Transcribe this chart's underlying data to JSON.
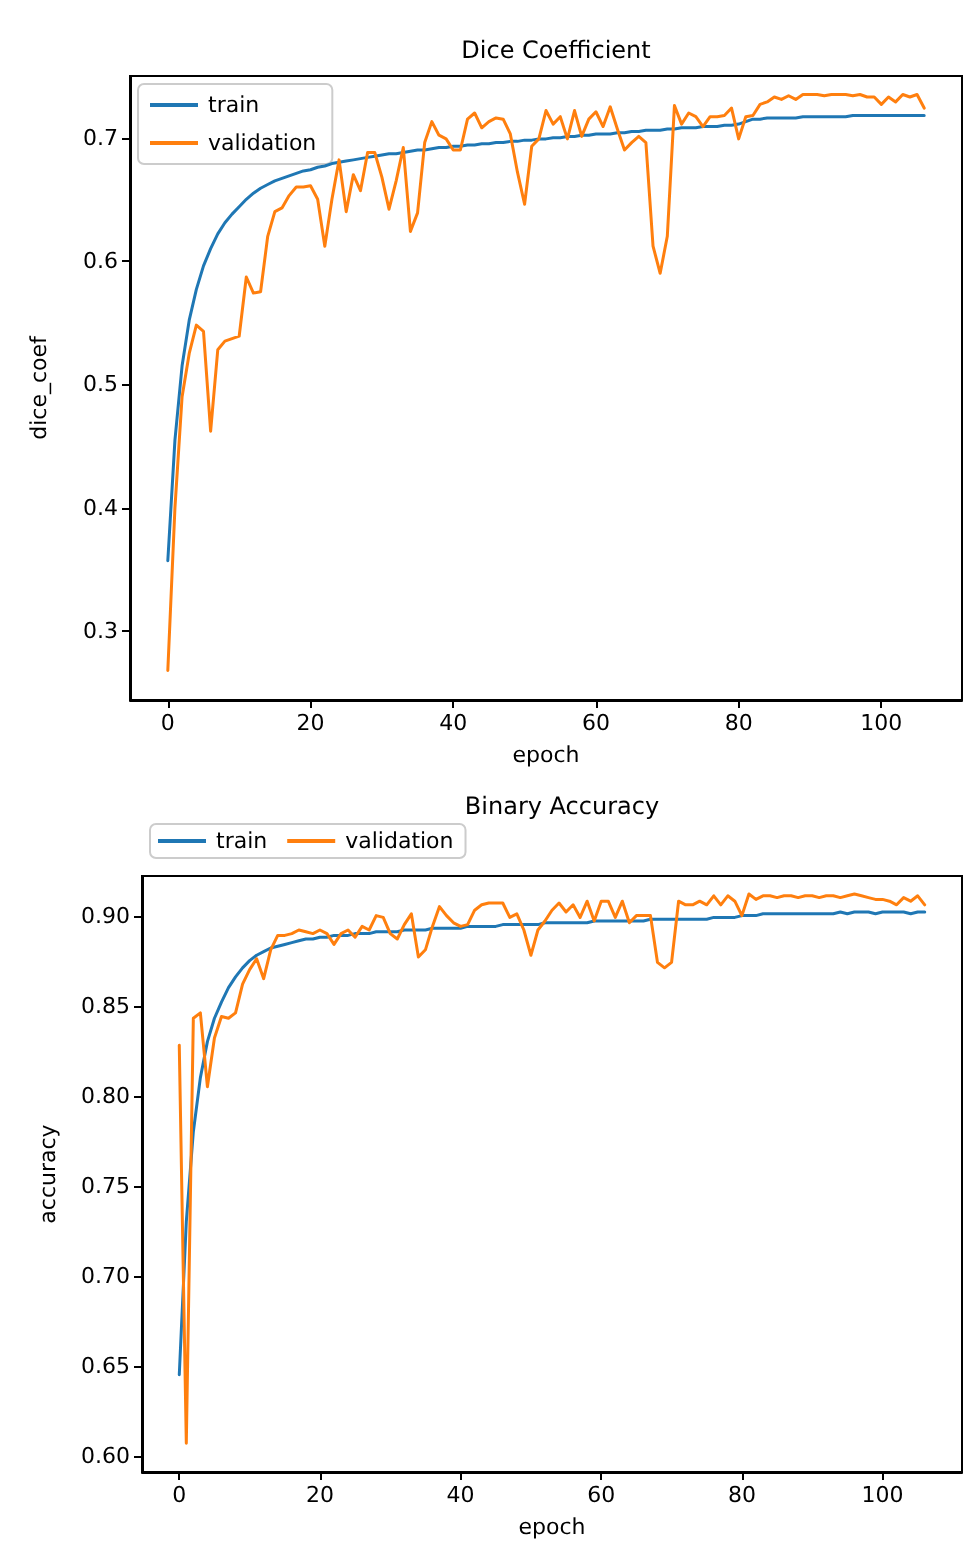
{
  "chart_data": [
    {
      "type": "line",
      "title": "Dice Coefficient",
      "xlabel": "epoch",
      "ylabel": "dice_coef",
      "x": [
        0,
        1,
        2,
        3,
        4,
        5,
        6,
        7,
        8,
        9,
        10,
        11,
        12,
        13,
        14,
        15,
        16,
        17,
        18,
        19,
        20,
        21,
        22,
        23,
        24,
        25,
        26,
        27,
        28,
        29,
        30,
        31,
        32,
        33,
        34,
        35,
        36,
        37,
        38,
        39,
        40,
        41,
        42,
        43,
        44,
        45,
        46,
        47,
        48,
        49,
        50,
        51,
        52,
        53,
        54,
        55,
        56,
        57,
        58,
        59,
        60,
        61,
        62,
        63,
        64,
        65,
        66,
        67,
        68,
        69,
        70,
        71,
        72,
        73,
        74,
        75,
        76,
        77,
        78,
        79,
        80,
        81,
        82,
        83,
        84,
        85,
        86,
        87,
        88,
        89,
        90,
        91,
        92,
        93,
        94,
        95,
        96,
        97,
        98,
        99,
        100,
        101,
        102,
        103,
        104,
        105,
        106
      ],
      "series": [
        {
          "name": "train",
          "color": "#1f77b4",
          "values": [
            0.357,
            0.455,
            0.515,
            0.552,
            0.577,
            0.596,
            0.61,
            0.622,
            0.631,
            0.638,
            0.644,
            0.65,
            0.655,
            0.659,
            0.662,
            0.665,
            0.667,
            0.669,
            0.671,
            0.673,
            0.674,
            0.676,
            0.677,
            0.679,
            0.68,
            0.681,
            0.682,
            0.683,
            0.684,
            0.685,
            0.686,
            0.687,
            0.687,
            0.688,
            0.689,
            0.69,
            0.69,
            0.691,
            0.692,
            0.692,
            0.693,
            0.693,
            0.694,
            0.694,
            0.695,
            0.695,
            0.696,
            0.696,
            0.697,
            0.697,
            0.698,
            0.698,
            0.699,
            0.699,
            0.7,
            0.7,
            0.701,
            0.701,
            0.702,
            0.702,
            0.703,
            0.703,
            0.703,
            0.704,
            0.704,
            0.705,
            0.705,
            0.706,
            0.706,
            0.706,
            0.707,
            0.707,
            0.708,
            0.708,
            0.708,
            0.709,
            0.709,
            0.709,
            0.71,
            0.71,
            0.711,
            0.713,
            0.715,
            0.715,
            0.716,
            0.716,
            0.716,
            0.716,
            0.716,
            0.717,
            0.717,
            0.717,
            0.717,
            0.717,
            0.717,
            0.717,
            0.718,
            0.718,
            0.718,
            0.718,
            0.718,
            0.718,
            0.718,
            0.718,
            0.718,
            0.718,
            0.718
          ]
        },
        {
          "name": "validation",
          "color": "#ff7f0e",
          "values": [
            0.268,
            0.4,
            0.49,
            0.525,
            0.548,
            0.543,
            0.462,
            0.528,
            0.535,
            0.537,
            0.539,
            0.587,
            0.574,
            0.575,
            0.62,
            0.64,
            0.643,
            0.653,
            0.66,
            0.66,
            0.661,
            0.65,
            0.612,
            0.65,
            0.682,
            0.64,
            0.67,
            0.657,
            0.688,
            0.688,
            0.668,
            0.642,
            0.665,
            0.692,
            0.624,
            0.639,
            0.696,
            0.713,
            0.702,
            0.699,
            0.69,
            0.69,
            0.715,
            0.72,
            0.708,
            0.713,
            0.716,
            0.715,
            0.703,
            0.672,
            0.646,
            0.693,
            0.699,
            0.722,
            0.711,
            0.717,
            0.699,
            0.722,
            0.701,
            0.715,
            0.721,
            0.709,
            0.725,
            0.707,
            0.69,
            0.696,
            0.701,
            0.696,
            0.612,
            0.59,
            0.62,
            0.726,
            0.711,
            0.72,
            0.717,
            0.709,
            0.717,
            0.717,
            0.718,
            0.724,
            0.699,
            0.717,
            0.718,
            0.727,
            0.729,
            0.733,
            0.731,
            0.734,
            0.731,
            0.735,
            0.735,
            0.735,
            0.734,
            0.735,
            0.735,
            0.735,
            0.734,
            0.735,
            0.733,
            0.733,
            0.727,
            0.733,
            0.729,
            0.735,
            0.733,
            0.735,
            0.724
          ]
        }
      ],
      "xlim": [
        -5.3,
        111.3
      ],
      "xticks": [
        0,
        20,
        40,
        60,
        80,
        100
      ],
      "ylim": [
        0.244,
        0.75
      ],
      "yticks": [
        0.3,
        0.4,
        0.5,
        0.6,
        0.7
      ],
      "grid": false,
      "legend": "top left"
    },
    {
      "type": "line",
      "title": "Binary Accuracy",
      "xlabel": "epoch",
      "ylabel": "accuracy",
      "x": [
        0,
        1,
        2,
        3,
        4,
        5,
        6,
        7,
        8,
        9,
        10,
        11,
        12,
        13,
        14,
        15,
        16,
        17,
        18,
        19,
        20,
        21,
        22,
        23,
        24,
        25,
        26,
        27,
        28,
        29,
        30,
        31,
        32,
        33,
        34,
        35,
        36,
        37,
        38,
        39,
        40,
        41,
        42,
        43,
        44,
        45,
        46,
        47,
        48,
        49,
        50,
        51,
        52,
        53,
        54,
        55,
        56,
        57,
        58,
        59,
        60,
        61,
        62,
        63,
        64,
        65,
        66,
        67,
        68,
        69,
        70,
        71,
        72,
        73,
        74,
        75,
        76,
        77,
        78,
        79,
        80,
        81,
        82,
        83,
        84,
        85,
        86,
        87,
        88,
        89,
        90,
        91,
        92,
        93,
        94,
        95,
        96,
        97,
        98,
        99,
        100,
        101,
        102,
        103,
        104,
        105,
        106
      ],
      "series": [
        {
          "name": "train",
          "color": "#1f77b4",
          "values": [
            0.645,
            0.73,
            0.78,
            0.81,
            0.83,
            0.843,
            0.852,
            0.86,
            0.866,
            0.871,
            0.875,
            0.878,
            0.88,
            0.882,
            0.883,
            0.884,
            0.885,
            0.886,
            0.887,
            0.887,
            0.888,
            0.888,
            0.889,
            0.889,
            0.889,
            0.89,
            0.89,
            0.89,
            0.891,
            0.891,
            0.891,
            0.891,
            0.892,
            0.892,
            0.892,
            0.892,
            0.893,
            0.893,
            0.893,
            0.893,
            0.893,
            0.894,
            0.894,
            0.894,
            0.894,
            0.894,
            0.895,
            0.895,
            0.895,
            0.895,
            0.895,
            0.895,
            0.896,
            0.896,
            0.896,
            0.896,
            0.896,
            0.896,
            0.896,
            0.897,
            0.897,
            0.897,
            0.897,
            0.897,
            0.897,
            0.897,
            0.897,
            0.898,
            0.898,
            0.898,
            0.898,
            0.898,
            0.898,
            0.898,
            0.898,
            0.898,
            0.899,
            0.899,
            0.899,
            0.899,
            0.9,
            0.9,
            0.9,
            0.901,
            0.901,
            0.901,
            0.901,
            0.901,
            0.901,
            0.901,
            0.901,
            0.901,
            0.901,
            0.901,
            0.902,
            0.901,
            0.902,
            0.902,
            0.902,
            0.901,
            0.902,
            0.902,
            0.902,
            0.902,
            0.901,
            0.902,
            0.902
          ]
        },
        {
          "name": "validation",
          "color": "#ff7f0e",
          "values": [
            0.828,
            0.607,
            0.843,
            0.846,
            0.805,
            0.832,
            0.844,
            0.843,
            0.846,
            0.862,
            0.87,
            0.876,
            0.865,
            0.881,
            0.889,
            0.889,
            0.89,
            0.892,
            0.891,
            0.89,
            0.892,
            0.89,
            0.884,
            0.89,
            0.892,
            0.888,
            0.894,
            0.892,
            0.9,
            0.899,
            0.89,
            0.887,
            0.895,
            0.901,
            0.877,
            0.881,
            0.894,
            0.905,
            0.9,
            0.896,
            0.894,
            0.895,
            0.903,
            0.906,
            0.907,
            0.907,
            0.907,
            0.899,
            0.901,
            0.892,
            0.878,
            0.892,
            0.897,
            0.903,
            0.907,
            0.902,
            0.906,
            0.899,
            0.908,
            0.897,
            0.908,
            0.908,
            0.899,
            0.908,
            0.896,
            0.9,
            0.9,
            0.9,
            0.874,
            0.871,
            0.874,
            0.908,
            0.906,
            0.906,
            0.908,
            0.906,
            0.911,
            0.906,
            0.911,
            0.908,
            0.9,
            0.912,
            0.909,
            0.911,
            0.911,
            0.91,
            0.911,
            0.911,
            0.91,
            0.911,
            0.911,
            0.91,
            0.911,
            0.911,
            0.91,
            0.911,
            0.912,
            0.911,
            0.91,
            0.909,
            0.909,
            0.908,
            0.906,
            0.91,
            0.908,
            0.911,
            0.906
          ]
        }
      ],
      "xlim": [
        -5.3,
        111.3
      ],
      "xticks": [
        0,
        20,
        40,
        60,
        80,
        100
      ],
      "ylim": [
        0.591,
        0.922
      ],
      "yticks": [
        {
          "value": 0.6,
          "label": "0.60"
        },
        {
          "value": 0.65,
          "label": "0.65"
        },
        {
          "value": 0.7,
          "label": "0.70"
        },
        {
          "value": 0.75,
          "label": "0.75"
        },
        {
          "value": 0.8,
          "label": "0.80"
        },
        {
          "value": 0.85,
          "label": "0.85"
        },
        {
          "value": 0.9,
          "label": "0.90"
        }
      ],
      "grid": false,
      "legend": "top left"
    }
  ]
}
